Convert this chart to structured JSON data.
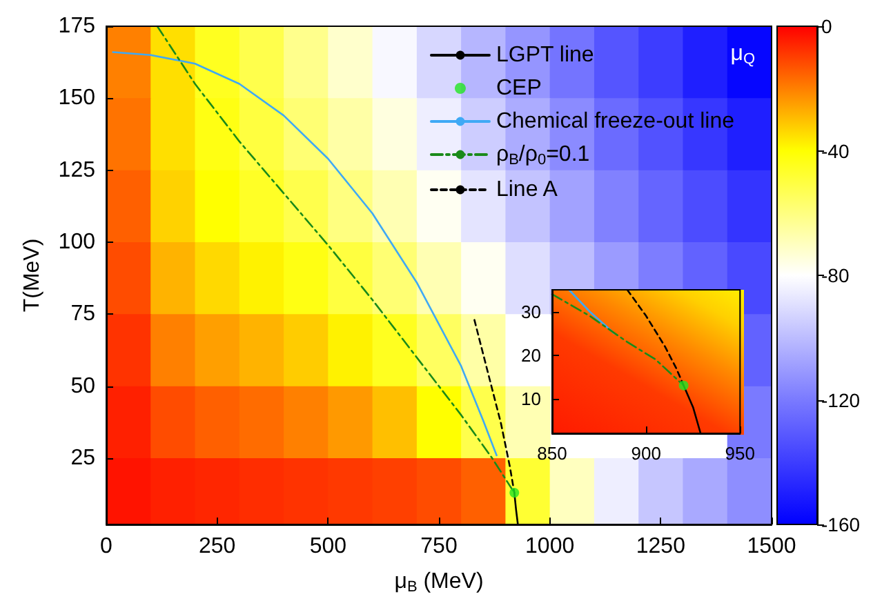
{
  "chart_data": [
    {
      "type": "heatmap",
      "xlabel": "μ$_{B}$ (MeV)",
      "ylabel": "T(MeV)",
      "clabel": "μ$_{Q}$",
      "legend": "top right",
      "x": [
        50,
        150,
        250,
        350,
        450,
        550,
        650,
        750,
        850,
        950,
        1050,
        1150,
        1250,
        1350,
        1450
      ],
      "y": [
        162.5,
        137.5,
        112.5,
        87.5,
        62.5,
        37.5,
        12.5
      ],
      "cells": [
        [
          -20,
          -35,
          -45,
          -52,
          -62,
          -72,
          -82,
          -92,
          -102,
          -112,
          -122,
          -132,
          -140,
          -150,
          -158
        ],
        [
          -18,
          -35,
          -43,
          -50,
          -58,
          -66,
          -75,
          -85,
          -95,
          -105,
          -115,
          -125,
          -133,
          -142,
          -150
        ],
        [
          -15,
          -33,
          -40,
          -46,
          -52,
          -60,
          -68,
          -78,
          -88,
          -98,
          -108,
          -118,
          -127,
          -135,
          -143
        ],
        [
          -12,
          -28,
          -34,
          -38,
          -43,
          -50,
          -58,
          -68,
          -78,
          -90,
          -100,
          -110,
          -119,
          -128,
          -136
        ],
        [
          -8,
          -20,
          -25,
          -28,
          -32,
          -38,
          -45,
          -55,
          -66,
          -80,
          null,
          null,
          null,
          null,
          -128
        ],
        [
          -5,
          -12,
          -15,
          -17,
          -20,
          -24,
          -30,
          -40,
          -52,
          -68,
          null,
          null,
          null,
          null,
          -120
        ],
        [
          -3,
          -5,
          -6,
          -7,
          -8,
          -9,
          -10,
          -12,
          -15,
          -48,
          -70,
          -85,
          -97,
          -106,
          -114
        ]
      ],
      "clim": [
        -160,
        0
      ],
      "cticks": [
        -160,
        -120,
        -80,
        -40,
        0
      ],
      "xlim": [
        0,
        1500
      ],
      "xticks": [
        0,
        250,
        500,
        750,
        1000,
        1250,
        1500
      ],
      "ylim": [
        2,
        175
      ],
      "yticks": [
        25,
        50,
        75,
        100,
        125,
        150,
        175
      ],
      "series": [
        {
          "type": "line",
          "name": "LGPT line",
          "color": "#000000",
          "line_style": "solid",
          "x": [
            920,
            924,
            928
          ],
          "values": [
            13,
            7,
            2
          ]
        },
        {
          "type": "scatter",
          "name": "CEP",
          "color": "#22e622",
          "marker": "circle",
          "x": [
            920
          ],
          "values": [
            13
          ]
        },
        {
          "type": "line",
          "name": "Chemical freeze-out line",
          "color": "#3fa9f5",
          "line_style": "solid",
          "x": [
            15,
            100,
            200,
            300,
            400,
            500,
            600,
            700,
            800,
            850,
            880
          ],
          "values": [
            166,
            165,
            162,
            155,
            144,
            129,
            110,
            86,
            57,
            38,
            26
          ]
        },
        {
          "type": "line",
          "name": "ρ$_{B}$/ρ$_{0}$=0.1",
          "color": "#1a8a1a",
          "line_style": "dashdot",
          "x": [
            115,
            200,
            300,
            400,
            500,
            600,
            700,
            800,
            870,
            920
          ],
          "values": [
            175,
            155,
            135,
            117,
            99,
            80,
            60,
            40,
            25,
            13
          ]
        },
        {
          "type": "line",
          "name": "Line A",
          "color": "#000000",
          "line_style": "dashed",
          "x": [
            830,
            860,
            890,
            910,
            920
          ],
          "values": [
            73,
            55,
            37,
            22,
            13
          ]
        }
      ]
    },
    {
      "type": "line",
      "xlim": [
        850,
        950
      ],
      "xticks": [
        850,
        900,
        950
      ],
      "ylim": [
        2,
        35
      ],
      "yticks": [
        10,
        20,
        30
      ],
      "series": [
        {
          "type": "line",
          "color": "#000000",
          "line_style": "solid",
          "x": [
            920,
            925,
            929
          ],
          "values": [
            13,
            8,
            2
          ]
        },
        {
          "type": "scatter",
          "color": "#22e622",
          "marker": "circle",
          "x": [
            920
          ],
          "values": [
            13
          ]
        },
        {
          "type": "line",
          "color": "#3fa9f5",
          "line_style": "solid",
          "x": [
            859,
            870,
            883
          ],
          "values": [
            35,
            30,
            25
          ]
        },
        {
          "type": "line",
          "color": "#1a8a1a",
          "line_style": "dashdot",
          "x": [
            850,
            870,
            890,
            905,
            920
          ],
          "values": [
            34,
            29,
            23,
            19,
            13
          ]
        },
        {
          "type": "line",
          "color": "#000000",
          "line_style": "dashed",
          "x": [
            890,
            900,
            910,
            916,
            920
          ],
          "values": [
            35,
            29,
            22,
            17,
            13
          ]
        }
      ]
    }
  ]
}
